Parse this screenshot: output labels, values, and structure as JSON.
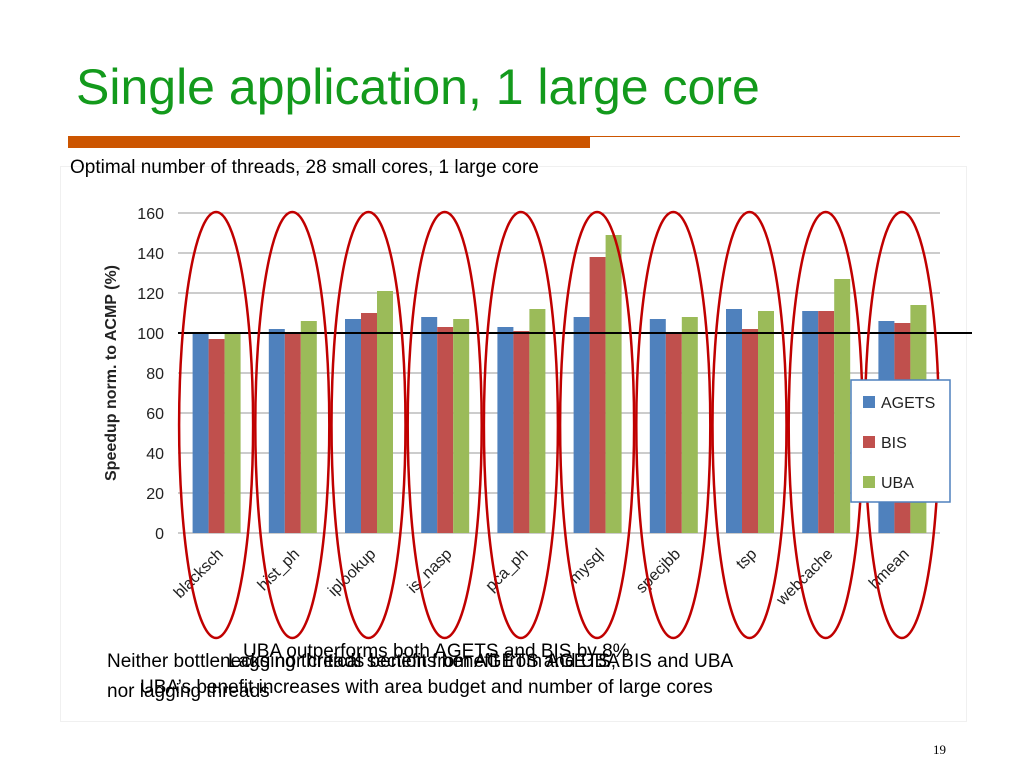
{
  "title": "Single application, 1 large core",
  "chart_data": {
    "type": "bar",
    "title": "Optimal number of threads, 28 small cores, 1 large core",
    "y_label": "Speedup norm. to ACMP (%)",
    "categories": [
      "blacksch",
      "hist_ph",
      "iplookup",
      "is_nasp",
      "pca_ph",
      "mysql",
      "specjbb",
      "tsp",
      "webcache",
      "hmean"
    ],
    "series": [
      {
        "name": "AGETS",
        "color": "#4f81bd",
        "values": [
          100,
          102,
          107,
          108,
          103,
          108,
          107,
          112,
          111,
          106
        ]
      },
      {
        "name": "BIS",
        "color": "#c0504d",
        "values": [
          97,
          100,
          110,
          103,
          101,
          138,
          100,
          102,
          111,
          105
        ]
      },
      {
        "name": "UBA",
        "color": "#9bbb59",
        "values": [
          100,
          106,
          121,
          107,
          112,
          149,
          108,
          111,
          127,
          114
        ]
      }
    ],
    "reference_line": 100,
    "ylim": [
      0,
      160
    ],
    "yticks": [
      0,
      20,
      40,
      60,
      80,
      100,
      120,
      140,
      160
    ],
    "grid": true,
    "legend": "right"
  },
  "notes": [
    "UBA outperforms both AGETS and BIS by 8%",
    "Lagging threads benefit from AGETS and UBA",
    "Neither bottlenecks nor critical sections benefit from AGETS, BIS and UBA",
    "nor lagging threads",
    "UBA’s benefit increases with area budget and number of large cores"
  ],
  "page_number": "19"
}
